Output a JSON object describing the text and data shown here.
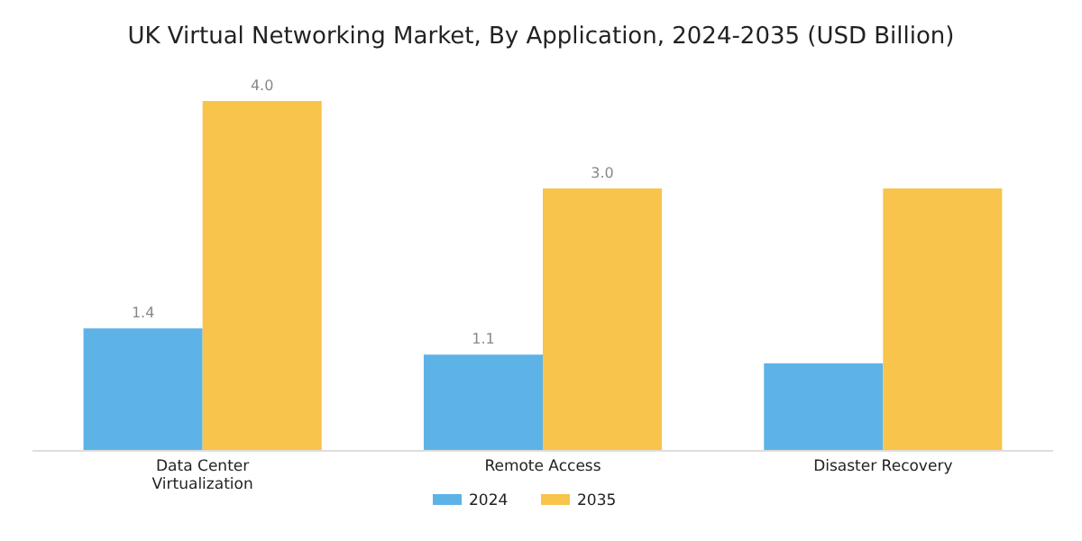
{
  "chart_data": {
    "type": "bar",
    "title": "UK Virtual Networking Market, By Application, 2024-2035 (USD Billion)",
    "categories": [
      "Data Center Virtualization",
      "Remote Access",
      "Disaster Recovery"
    ],
    "series": [
      {
        "name": "2024",
        "color": "#5db3e6",
        "values": [
          1.4,
          1.1,
          1.0
        ],
        "value_labels": [
          "1.4",
          "1.1",
          null
        ]
      },
      {
        "name": "2035",
        "color": "#f9c44c",
        "values": [
          4.0,
          3.0,
          3.0
        ],
        "value_labels": [
          "4.0",
          "3.0",
          null
        ]
      }
    ],
    "legend": "bottom"
  }
}
